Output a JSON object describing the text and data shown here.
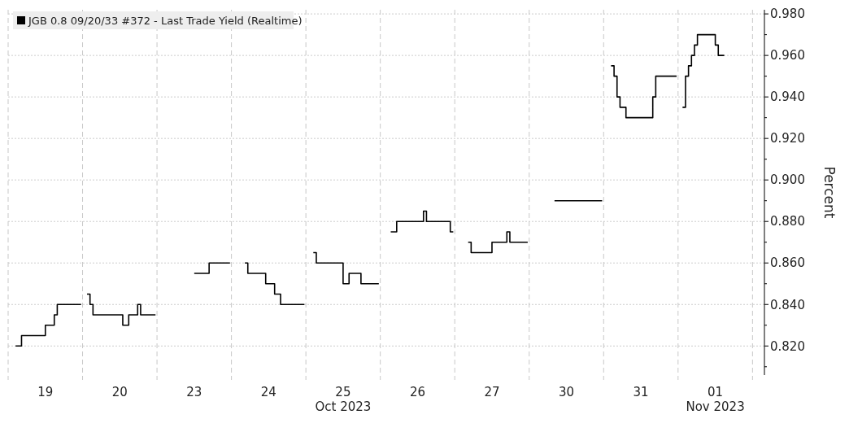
{
  "chart_data": {
    "type": "step",
    "ylabel": "Percent",
    "legend": "top left",
    "grid": true,
    "ylim": [
      0.806,
      0.982
    ],
    "categories": [
      null,
      null,
      null,
      null,
      null,
      null,
      null,
      null,
      null,
      null,
      null,
      null,
      "19",
      null,
      null,
      null,
      null,
      null,
      null,
      null,
      null,
      null,
      null,
      null,
      null,
      null,
      null,
      null,
      null,
      null,
      null,
      null,
      null,
      null,
      null,
      null,
      null,
      "20",
      null,
      null,
      null,
      null,
      null,
      null,
      null,
      null,
      null,
      null,
      null,
      null,
      null,
      null,
      null,
      null,
      null,
      null,
      null,
      null,
      null,
      null,
      null,
      null,
      "23",
      null,
      null,
      null,
      null,
      null,
      null,
      null,
      null,
      null,
      null,
      null,
      null,
      null,
      null,
      null,
      null,
      null,
      null,
      null,
      null,
      null,
      null,
      null,
      null,
      "24",
      null,
      null,
      null,
      null,
      null,
      null,
      null,
      null,
      null,
      null,
      null,
      null,
      null,
      null,
      null,
      null,
      null,
      null,
      null,
      null,
      null,
      null,
      null,
      null,
      "25\nOct 2023",
      null,
      null,
      null,
      null,
      null,
      null,
      null,
      null,
      null,
      null,
      null,
      null,
      null,
      null,
      null,
      null,
      null,
      null,
      null,
      null,
      null,
      null,
      null,
      null,
      "26",
      null,
      null,
      null,
      null,
      null,
      null,
      null,
      null,
      null,
      null,
      null,
      null,
      null,
      null,
      null,
      null,
      null,
      null,
      null,
      null,
      null,
      null,
      null,
      null,
      "27",
      null,
      null,
      null,
      null,
      null,
      null,
      null,
      null,
      null,
      null,
      null,
      null,
      null,
      null,
      null,
      null,
      null,
      null,
      null,
      null,
      null,
      null,
      null,
      null,
      "30",
      null,
      null,
      null,
      null,
      null,
      null,
      null,
      null,
      null,
      null,
      null,
      null,
      null,
      null,
      null,
      null,
      null,
      null,
      null,
      null,
      null,
      null,
      null,
      null,
      "31",
      null,
      null,
      null,
      null,
      null,
      null,
      null,
      null,
      null,
      null,
      null,
      null,
      null,
      null,
      null,
      null,
      null,
      null,
      null,
      null,
      null,
      null,
      null,
      null,
      "01\nNov 2023",
      null,
      null,
      null,
      null,
      null,
      null,
      null,
      null,
      null,
      null,
      null,
      null,
      null,
      null,
      null,
      null
    ],
    "yticks": [
      {
        "value": 0.81,
        "label": null
      },
      {
        "value": 0.82,
        "label": "0.820"
      },
      {
        "value": 0.83,
        "label": null
      },
      {
        "value": 0.84,
        "label": "0.840"
      },
      {
        "value": 0.85,
        "label": null
      },
      {
        "value": 0.86,
        "label": "0.860"
      },
      {
        "value": 0.87,
        "label": null
      },
      {
        "value": 0.88,
        "label": "0.880"
      },
      {
        "value": 0.89,
        "label": null
      },
      {
        "value": 0.9,
        "label": "0.900"
      },
      {
        "value": 0.91,
        "label": null
      },
      {
        "value": 0.92,
        "label": "0.920"
      },
      {
        "value": 0.93,
        "label": null
      },
      {
        "value": 0.94,
        "label": "0.940"
      },
      {
        "value": 0.95,
        "label": null
      },
      {
        "value": 0.96,
        "label": "0.960"
      },
      {
        "value": 0.97,
        "label": null
      },
      {
        "value": 0.98,
        "label": "0.980"
      }
    ],
    "series": [
      {
        "name": "JGB 0.8 09/20/33 #372 - Last Trade Yield (Realtime)",
        "color": "#000000",
        "values": [
          null,
          null,
          0.82,
          0.82,
          0.825,
          0.825,
          0.825,
          0.825,
          0.825,
          0.825,
          0.825,
          0.825,
          0.83,
          0.83,
          0.83,
          0.835,
          0.84,
          0.84,
          0.84,
          0.84,
          0.84,
          0.84,
          0.84,
          0.84,
          0.84,
          null,
          0.845,
          0.84,
          0.835,
          0.835,
          0.835,
          0.835,
          0.835,
          0.835,
          0.835,
          0.835,
          0.835,
          0.835,
          0.83,
          0.83,
          0.835,
          0.835,
          0.835,
          0.84,
          0.835,
          0.835,
          0.835,
          0.835,
          0.835,
          0.835,
          null,
          null,
          null,
          null,
          null,
          null,
          null,
          null,
          null,
          null,
          null,
          null,
          0.855,
          0.855,
          0.855,
          0.855,
          0.855,
          0.86,
          0.86,
          0.86,
          0.86,
          0.86,
          0.86,
          0.86,
          0.86,
          null,
          null,
          null,
          null,
          0.86,
          0.855,
          0.855,
          0.855,
          0.855,
          0.855,
          0.855,
          0.85,
          0.85,
          0.85,
          0.845,
          0.845,
          0.84,
          0.84,
          0.84,
          0.84,
          0.84,
          0.84,
          0.84,
          0.84,
          0.84,
          null,
          null,
          0.865,
          0.86,
          0.86,
          0.86,
          0.86,
          0.86,
          0.86,
          0.86,
          0.86,
          0.86,
          0.85,
          0.85,
          0.855,
          0.855,
          0.855,
          0.855,
          0.85,
          0.85,
          0.85,
          0.85,
          0.85,
          0.85,
          0.85,
          null,
          null,
          null,
          0.875,
          0.875,
          0.88,
          0.88,
          0.88,
          0.88,
          0.88,
          0.88,
          0.88,
          0.88,
          0.88,
          0.885,
          0.88,
          0.88,
          0.88,
          0.88,
          0.88,
          0.88,
          0.88,
          0.88,
          0.875,
          0.875,
          null,
          null,
          null,
          null,
          0.87,
          0.865,
          0.865,
          0.865,
          0.865,
          0.865,
          0.865,
          0.865,
          0.87,
          0.87,
          0.87,
          0.87,
          0.87,
          0.875,
          0.87,
          0.87,
          0.87,
          0.87,
          0.87,
          0.87,
          0.87,
          null,
          null,
          null,
          null,
          null,
          null,
          null,
          null,
          0.89,
          0.89,
          0.89,
          0.89,
          0.89,
          0.89,
          0.89,
          0.89,
          0.89,
          0.89,
          0.89,
          0.89,
          0.89,
          0.89,
          0.89,
          0.89,
          0.89,
          null,
          null,
          0.955,
          0.95,
          0.94,
          0.935,
          0.935,
          0.93,
          0.93,
          0.93,
          0.93,
          0.93,
          0.93,
          0.93,
          0.93,
          0.93,
          0.94,
          0.95,
          0.95,
          0.95,
          0.95,
          0.95,
          0.95,
          0.95,
          0.95,
          null,
          0.935,
          0.95,
          0.955,
          0.96,
          0.965,
          0.97,
          0.97,
          0.97,
          0.97,
          0.97,
          0.97,
          0.965,
          0.96,
          0.96,
          0.96,
          null,
          null,
          null,
          null,
          null,
          null,
          null,
          null,
          null,
          null,
          null,
          null,
          null
        ]
      }
    ]
  }
}
